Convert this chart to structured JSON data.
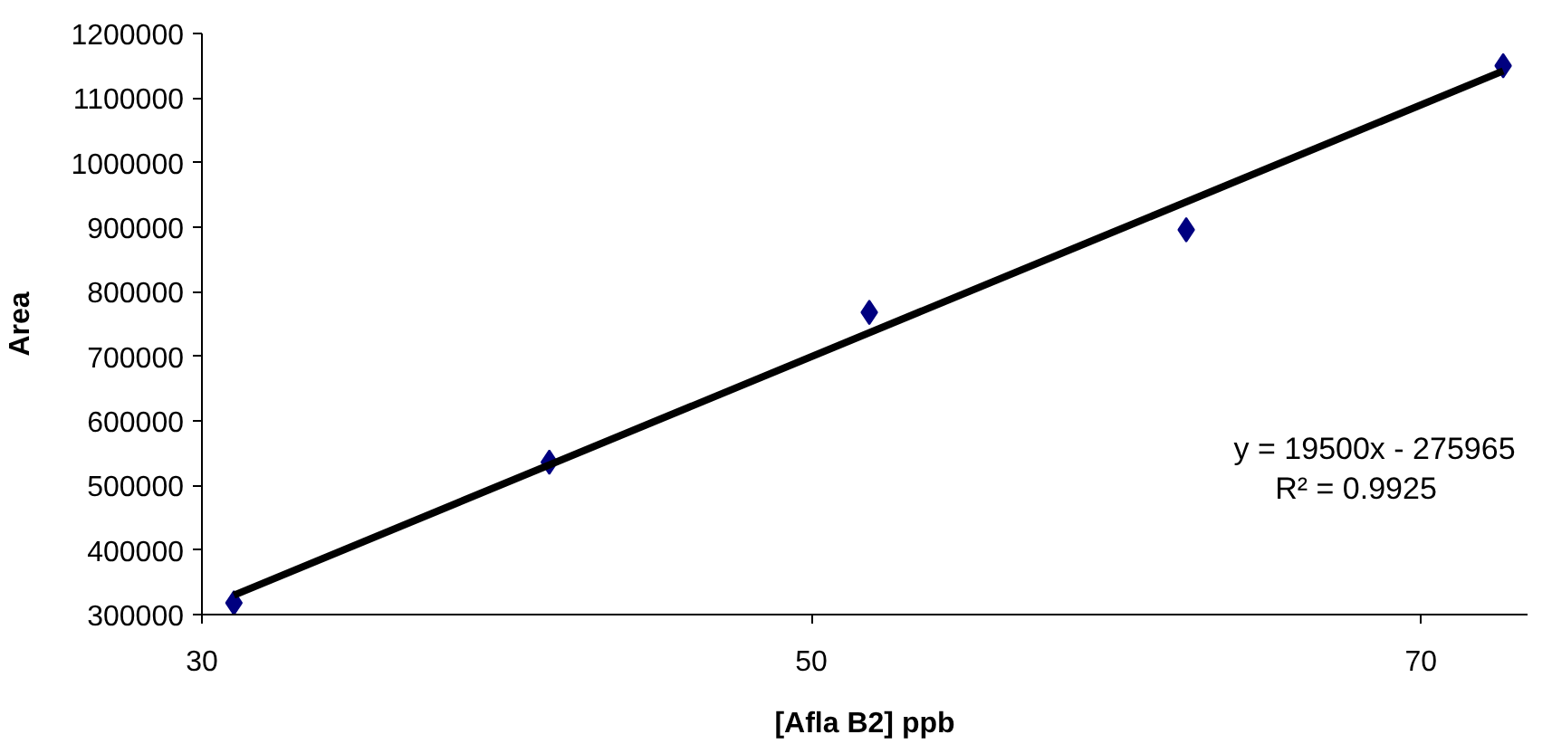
{
  "chart_data": {
    "type": "scatter",
    "xlabel": "[Afla B2] ppb",
    "ylabel": "Area",
    "series": [
      {
        "color": "#000080",
        "marker": "diamond",
        "x": [
          31.05,
          41.4,
          51.9,
          62.3,
          72.7
        ],
        "values": [
          318000,
          536000,
          768000,
          896000,
          1150000
        ]
      },
      {
        "type": "line",
        "color": "#000000",
        "marker": "none",
        "line_style": "solid",
        "x": [
          31.05,
          72.7
        ],
        "values": [
          330000,
          1142000
        ]
      }
    ],
    "xlim": [
      30,
      73.5
    ],
    "xticks": [
      30,
      50,
      70
    ],
    "ylim": [
      300000,
      1200000
    ],
    "yticks": [
      300000,
      400000,
      500000,
      600000,
      700000,
      800000,
      900000,
      1000000,
      1100000,
      1200000
    ],
    "annotations": [
      "y = 19500x - 275965",
      "R² = 0.9925"
    ],
    "grid": false
  }
}
